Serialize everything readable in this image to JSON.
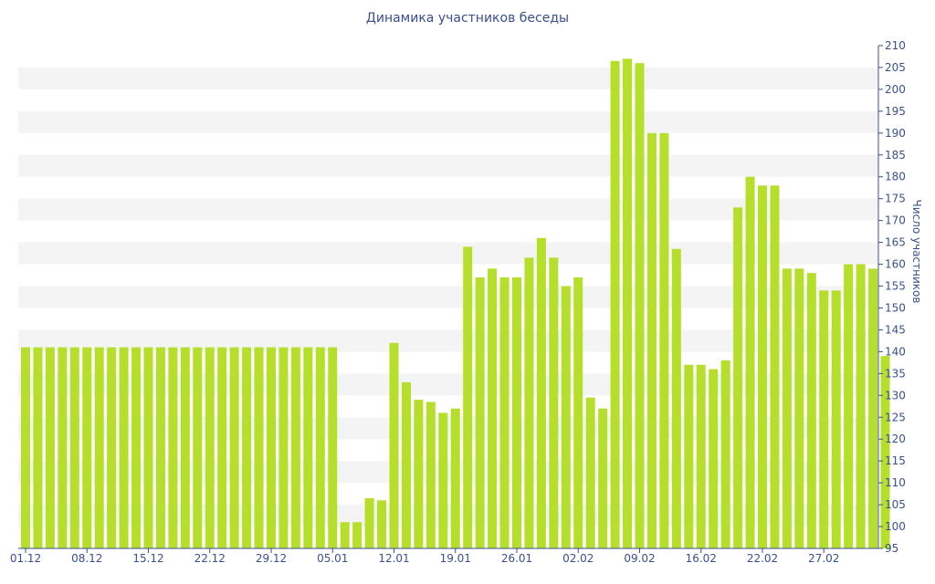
{
  "chart_data": {
    "type": "bar",
    "title": "Динамика участников беседы",
    "ylabel": "Число участников",
    "xlabel": "",
    "ylim": [
      95,
      210
    ],
    "ytick_step": 5,
    "y_axis_position": "right",
    "bar_color": "#b5df2b",
    "band_color": "#f4f4f4",
    "axis_color": "#3b4f8f",
    "x_tick_labels": [
      {
        "index": 0,
        "label": "01.12"
      },
      {
        "index": 5,
        "label": "08.12"
      },
      {
        "index": 10,
        "label": "15.12"
      },
      {
        "index": 15,
        "label": "22.12"
      },
      {
        "index": 20,
        "label": "29.12"
      },
      {
        "index": 25,
        "label": "05.01"
      },
      {
        "index": 30,
        "label": "12.01"
      },
      {
        "index": 35,
        "label": "19.01"
      },
      {
        "index": 40,
        "label": "26.01"
      },
      {
        "index": 45,
        "label": "02.02"
      },
      {
        "index": 50,
        "label": "09.02"
      },
      {
        "index": 55,
        "label": "16.02"
      },
      {
        "index": 60,
        "label": "22.02"
      },
      {
        "index": 65,
        "label": "27.02"
      }
    ],
    "values": [
      141,
      141,
      141,
      141,
      141,
      141,
      141,
      141,
      141,
      141,
      141,
      141,
      141,
      141,
      141,
      141,
      141,
      141,
      141,
      141,
      141,
      141,
      141,
      141,
      141,
      141,
      101,
      101,
      106.5,
      106,
      142,
      133,
      129,
      128.5,
      126,
      127,
      164,
      157,
      159,
      157,
      157,
      161.5,
      166,
      161.5,
      155,
      157,
      129.5,
      127,
      206.5,
      207,
      206,
      190,
      190,
      163.5,
      137,
      137,
      136,
      138,
      173,
      180,
      178,
      178,
      159,
      159,
      158,
      154,
      154,
      160,
      160,
      159,
      139
    ]
  }
}
